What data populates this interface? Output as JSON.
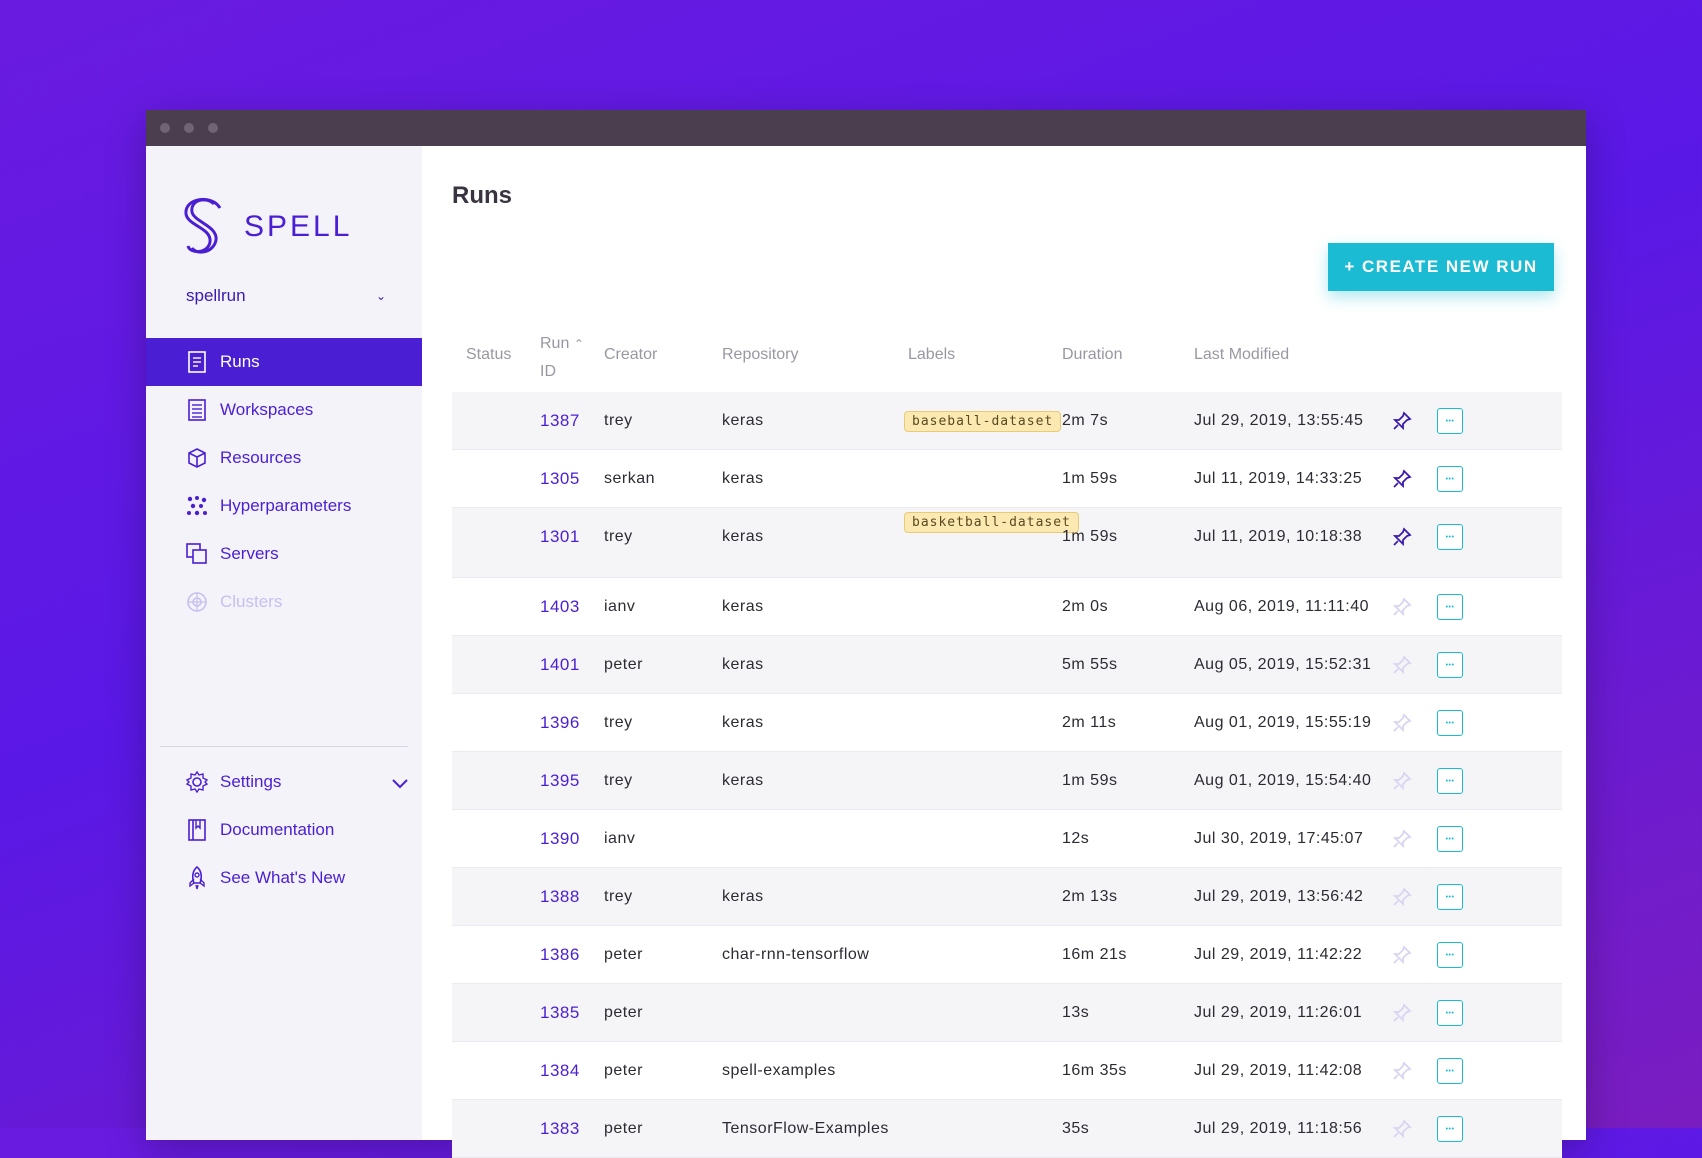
{
  "brand": {
    "name": "SPELL",
    "accent": "#4a1fd3",
    "cta": "#1bbcd3"
  },
  "org": {
    "name": "spellrun"
  },
  "nav": [
    {
      "label": "Runs",
      "icon": "document-icon",
      "active": true
    },
    {
      "label": "Workspaces",
      "icon": "list-icon"
    },
    {
      "label": "Resources",
      "icon": "cube-icon"
    },
    {
      "label": "Hyperparameters",
      "icon": "dots-icon"
    },
    {
      "label": "Servers",
      "icon": "copy-icon"
    },
    {
      "label": "Clusters",
      "icon": "cluster-icon",
      "disabled": true
    }
  ],
  "nav_bottom": [
    {
      "label": "Settings",
      "icon": "gear-icon"
    },
    {
      "label": "Documentation",
      "icon": "book-icon"
    },
    {
      "label": "See What's New",
      "icon": "rocket-icon"
    }
  ],
  "page": {
    "title": "Runs",
    "create_label": "+ CREATE NEW RUN"
  },
  "columns": {
    "status": "Status",
    "run_id_1": "Run",
    "run_id_2": "ID",
    "creator": "Creator",
    "repository": "Repository",
    "labels": "Labels",
    "duration": "Duration",
    "modified": "Last Modified"
  },
  "rows": [
    {
      "id": "1387",
      "creator": "trey",
      "repo": "keras",
      "label": "baseball-dataset",
      "duration": "2m 7s",
      "modified": "Jul 29, 2019, 13:55:45",
      "pinned": true
    },
    {
      "id": "1305",
      "creator": "serkan",
      "repo": "keras",
      "label": "",
      "duration": "1m 59s",
      "modified": "Jul 11, 2019, 14:33:25",
      "pinned": true
    },
    {
      "id": "1301",
      "creator": "trey",
      "repo": "keras",
      "label": "basketball-dataset",
      "duration": "1m 59s",
      "modified": "Jul 11, 2019, 10:18:38",
      "pinned": true
    },
    {
      "id": "1403",
      "creator": "ianv",
      "repo": "keras",
      "label": "",
      "duration": "2m 0s",
      "modified": "Aug 06, 2019, 11:11:40",
      "pinned": false
    },
    {
      "id": "1401",
      "creator": "peter",
      "repo": "keras",
      "label": "",
      "duration": "5m 55s",
      "modified": "Aug 05, 2019, 15:52:31",
      "pinned": false
    },
    {
      "id": "1396",
      "creator": "trey",
      "repo": "keras",
      "label": "",
      "duration": "2m 11s",
      "modified": "Aug 01, 2019, 15:55:19",
      "pinned": false
    },
    {
      "id": "1395",
      "creator": "trey",
      "repo": "keras",
      "label": "",
      "duration": "1m 59s",
      "modified": "Aug 01, 2019, 15:54:40",
      "pinned": false
    },
    {
      "id": "1390",
      "creator": "ianv",
      "repo": "",
      "label": "",
      "duration": "12s",
      "modified": "Jul 30, 2019, 17:45:07",
      "pinned": false
    },
    {
      "id": "1388",
      "creator": "trey",
      "repo": "keras",
      "label": "",
      "duration": "2m 13s",
      "modified": "Jul 29, 2019, 13:56:42",
      "pinned": false
    },
    {
      "id": "1386",
      "creator": "peter",
      "repo": "char-rnn-tensorflow",
      "label": "",
      "duration": "16m 21s",
      "modified": "Jul 29, 2019, 11:42:22",
      "pinned": false
    },
    {
      "id": "1385",
      "creator": "peter",
      "repo": "",
      "label": "",
      "duration": "13s",
      "modified": "Jul 29, 2019, 11:26:01",
      "pinned": false
    },
    {
      "id": "1384",
      "creator": "peter",
      "repo": "spell-examples",
      "label": "",
      "duration": "16m 35s",
      "modified": "Jul 29, 2019, 11:42:08",
      "pinned": false
    },
    {
      "id": "1383",
      "creator": "peter",
      "repo": "TensorFlow-Examples",
      "label": "",
      "duration": "35s",
      "modified": "Jul 29, 2019, 11:18:56",
      "pinned": false
    }
  ]
}
